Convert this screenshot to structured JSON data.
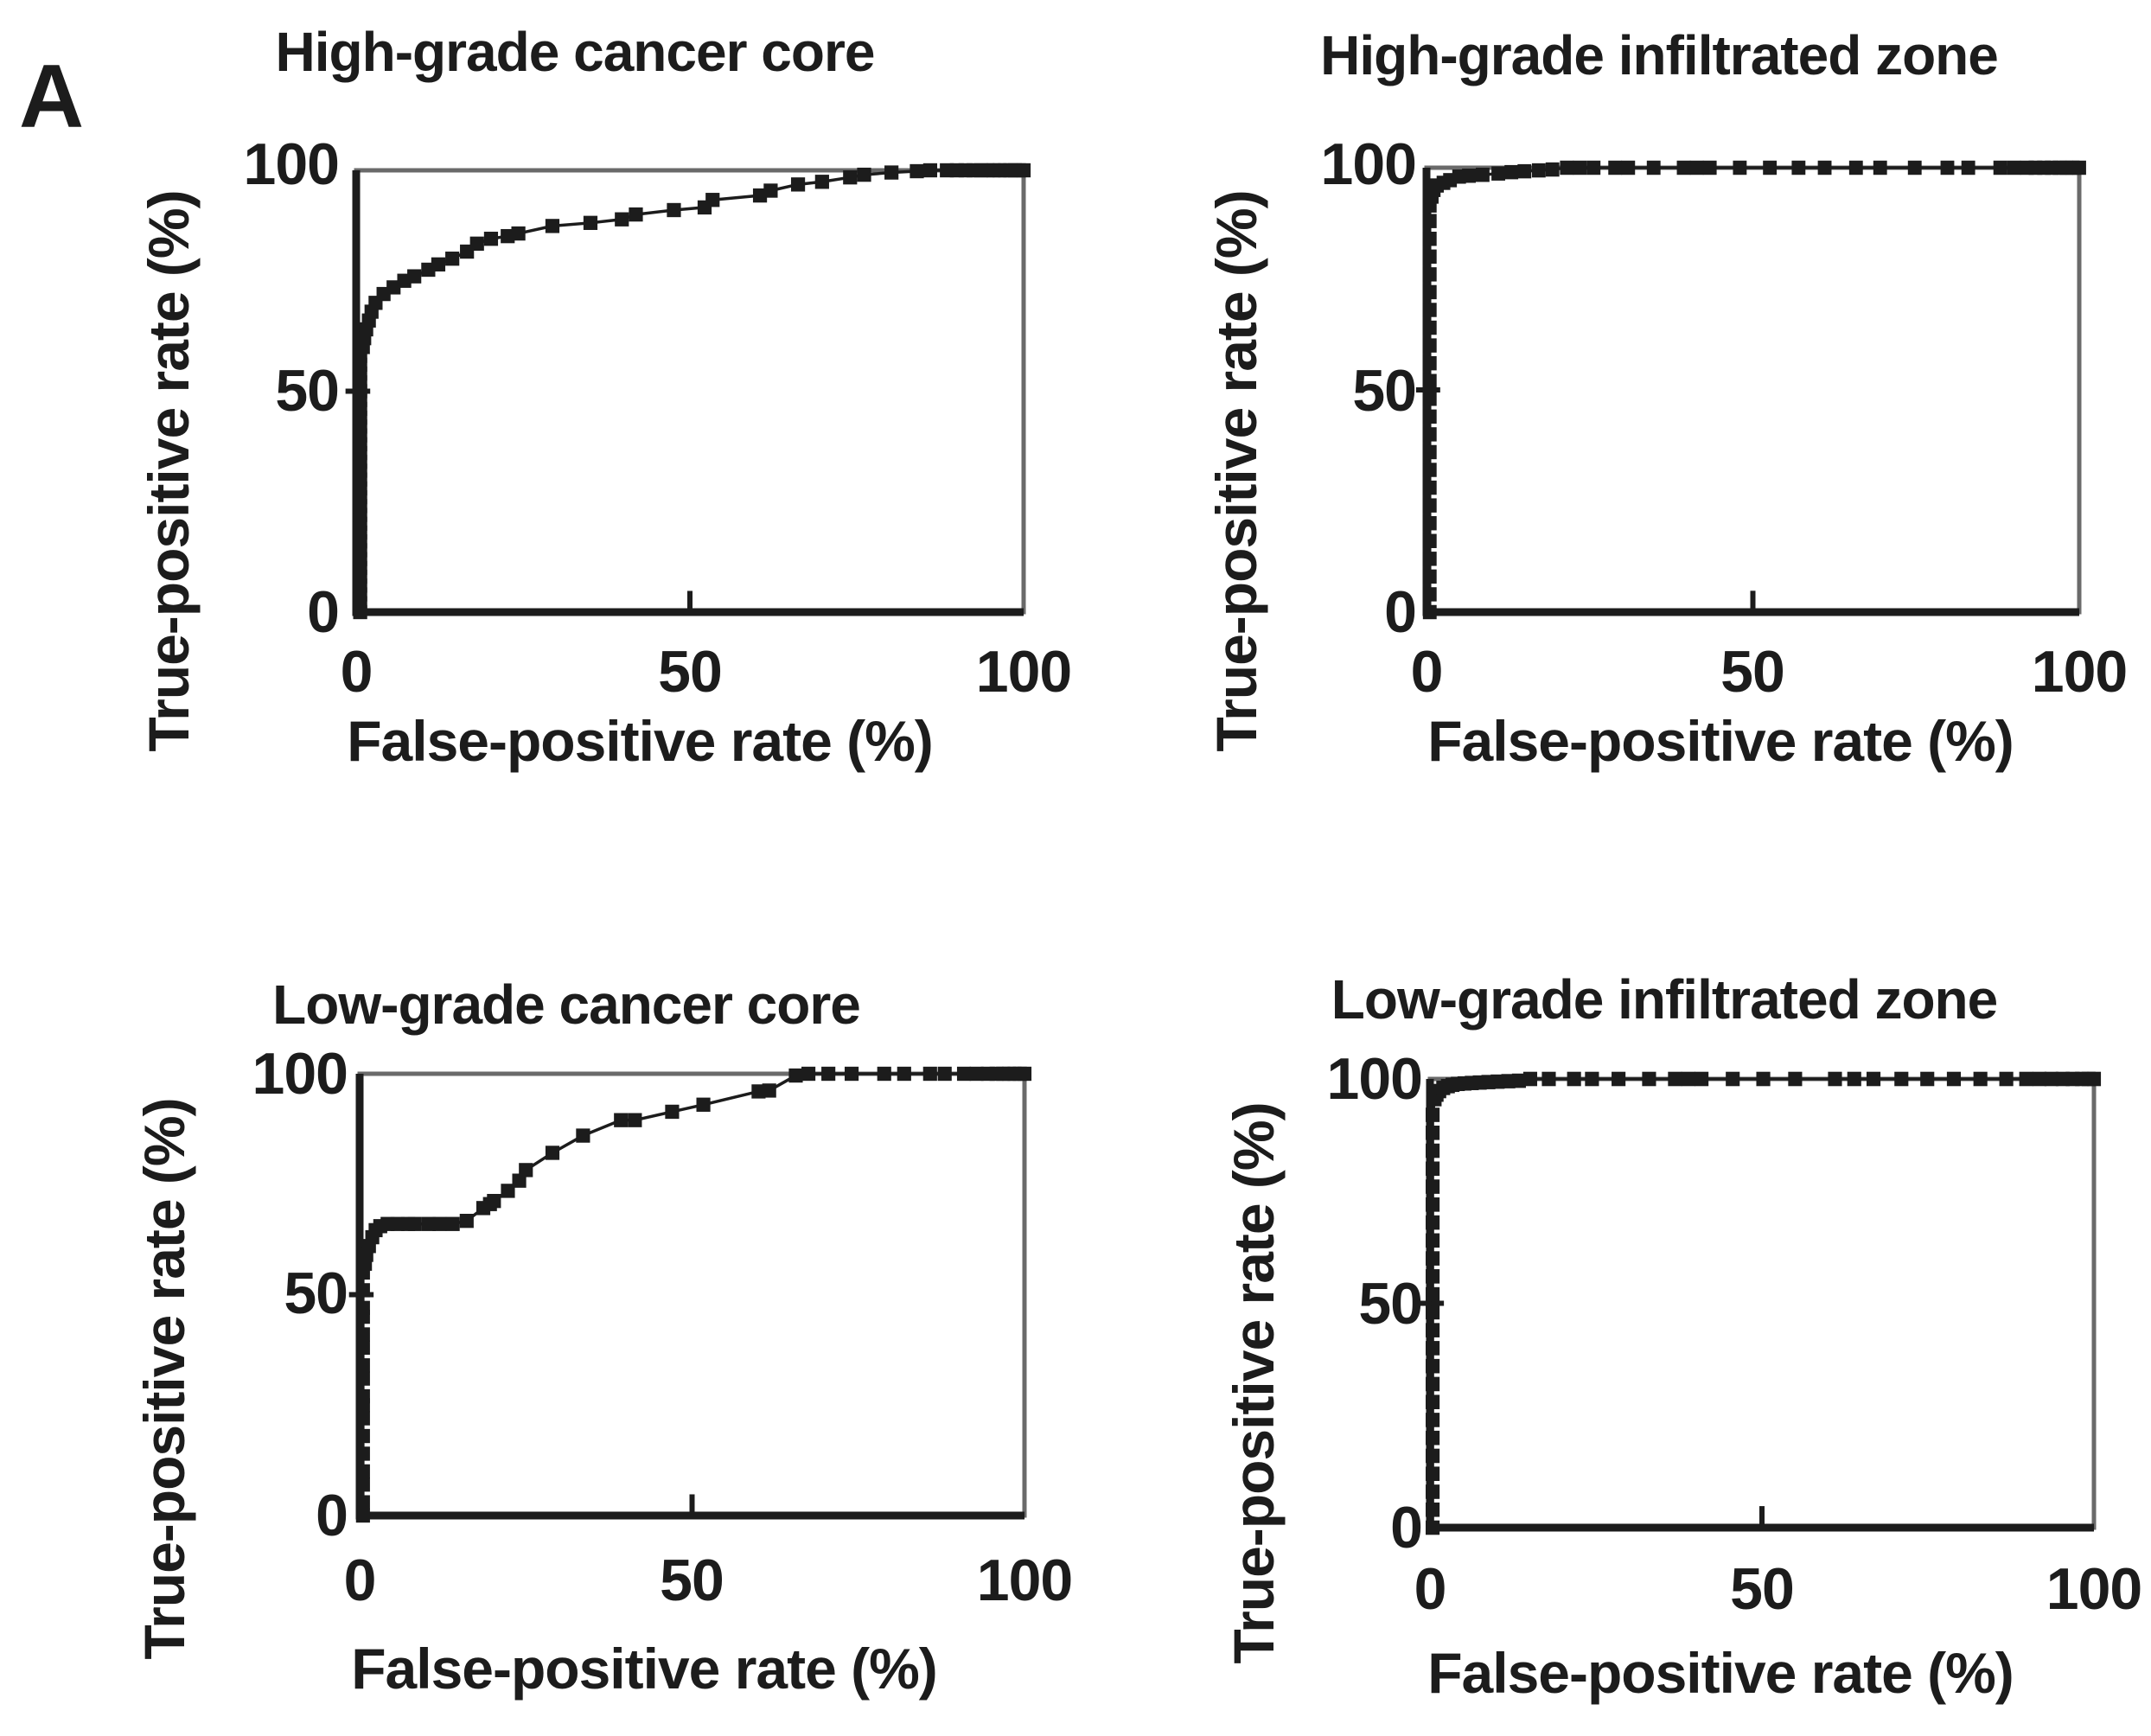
{
  "figure": {
    "panel_label": "A",
    "x_axis_label": "False-positive rate (%)",
    "y_axis_label": "True-positive rate (%)",
    "x_tick_labels": [
      "0",
      "50",
      "100"
    ],
    "y_tick_labels": [
      "100",
      "50",
      "0"
    ]
  },
  "colors": {
    "ink": "#1c1c1c",
    "frame": "#6a6a6a",
    "background": "#ffffff"
  },
  "chart_data": [
    {
      "type": "line",
      "title": "High-grade cancer core",
      "xlabel": "False-positive rate (%)",
      "ylabel": "True-positive rate (%)",
      "xlim": [
        0,
        100
      ],
      "ylim": [
        0,
        100
      ],
      "x_ticks": [
        0,
        50,
        100
      ],
      "y_ticks": [
        0,
        50,
        100
      ],
      "marker": "square",
      "points": [
        [
          0.6,
          0
        ],
        [
          0.6,
          2
        ],
        [
          0.6,
          4
        ],
        [
          0.6,
          6
        ],
        [
          0.6,
          8
        ],
        [
          0.6,
          10
        ],
        [
          0.6,
          12
        ],
        [
          0.6,
          14
        ],
        [
          0.6,
          16
        ],
        [
          0.6,
          18
        ],
        [
          0.6,
          20
        ],
        [
          0.6,
          22
        ],
        [
          0.6,
          24
        ],
        [
          0.6,
          26
        ],
        [
          0.6,
          28
        ],
        [
          0.6,
          30
        ],
        [
          0.6,
          32
        ],
        [
          0.6,
          34
        ],
        [
          0.6,
          36
        ],
        [
          0.6,
          38
        ],
        [
          0.6,
          40
        ],
        [
          0.6,
          42
        ],
        [
          0.6,
          44
        ],
        [
          0.6,
          46
        ],
        [
          0.6,
          48
        ],
        [
          0.6,
          50
        ],
        [
          0.6,
          52
        ],
        [
          0.6,
          54
        ],
        [
          0.6,
          56
        ],
        [
          0.6,
          58
        ],
        [
          1,
          60
        ],
        [
          1.2,
          62
        ],
        [
          1.5,
          64
        ],
        [
          1.9,
          66
        ],
        [
          2.3,
          68
        ],
        [
          2.9,
          70
        ],
        [
          4.1,
          72
        ],
        [
          5.6,
          73.5
        ],
        [
          7.2,
          75
        ],
        [
          8.7,
          76
        ],
        [
          10.8,
          77.5
        ],
        [
          12.3,
          78.7
        ],
        [
          14.4,
          80
        ],
        [
          16.6,
          81.6
        ],
        [
          18.1,
          83.4
        ],
        [
          20.2,
          84.5
        ],
        [
          22.7,
          85.1
        ],
        [
          24.3,
          85.7
        ],
        [
          29.4,
          87.4
        ],
        [
          35.1,
          88.1
        ],
        [
          39.8,
          88.9
        ],
        [
          41.9,
          90
        ],
        [
          47.6,
          91
        ],
        [
          52.2,
          91.6
        ],
        [
          53.4,
          93.3
        ],
        [
          60.5,
          94.3
        ],
        [
          62.1,
          95.4
        ],
        [
          66.2,
          96.8
        ],
        [
          69.8,
          97.4
        ],
        [
          74,
          98.4
        ],
        [
          76.1,
          99
        ],
        [
          80.2,
          99.5
        ],
        [
          84,
          99.8
        ],
        [
          86,
          100
        ],
        [
          88.5,
          100
        ],
        [
          90,
          100
        ],
        [
          91.3,
          100
        ],
        [
          92.5,
          100
        ],
        [
          93.6,
          100
        ],
        [
          94.6,
          100
        ],
        [
          95.5,
          100
        ],
        [
          96.4,
          100
        ],
        [
          97.2,
          100
        ],
        [
          98,
          100
        ],
        [
          98.7,
          100
        ],
        [
          99.3,
          100
        ],
        [
          100,
          100
        ]
      ]
    },
    {
      "type": "line",
      "title": "High-grade infiltrated zone",
      "xlabel": "False-positive rate (%)",
      "ylabel": "True-positive rate (%)",
      "xlim": [
        0,
        100
      ],
      "ylim": [
        0,
        100
      ],
      "x_ticks": [
        0,
        50,
        100
      ],
      "y_ticks": [
        0,
        50,
        100
      ],
      "marker": "square",
      "points": [
        [
          0.5,
          0
        ],
        [
          0.5,
          4
        ],
        [
          0.5,
          8
        ],
        [
          0.5,
          12
        ],
        [
          0.5,
          16
        ],
        [
          0.5,
          20
        ],
        [
          0.5,
          24
        ],
        [
          0.5,
          28
        ],
        [
          0.5,
          32
        ],
        [
          0.5,
          36
        ],
        [
          0.5,
          40
        ],
        [
          0.5,
          44
        ],
        [
          0.5,
          48
        ],
        [
          0.5,
          52
        ],
        [
          0.5,
          56
        ],
        [
          0.5,
          60
        ],
        [
          0.5,
          64
        ],
        [
          0.5,
          68
        ],
        [
          0.5,
          72
        ],
        [
          0.5,
          76
        ],
        [
          0.5,
          80
        ],
        [
          0.5,
          84
        ],
        [
          0.5,
          88
        ],
        [
          0.5,
          91.5
        ],
        [
          0.8,
          93.5
        ],
        [
          1.1,
          95
        ],
        [
          1.6,
          96
        ],
        [
          2.6,
          96.6
        ],
        [
          3.6,
          97.2
        ],
        [
          5,
          98
        ],
        [
          6.5,
          98.2
        ],
        [
          8.6,
          98.4
        ],
        [
          11,
          98.7
        ],
        [
          13,
          99
        ],
        [
          15,
          99.2
        ],
        [
          17.2,
          99.4
        ],
        [
          19.3,
          99.6
        ],
        [
          21.5,
          100
        ],
        [
          23.5,
          100
        ],
        [
          25.6,
          100
        ],
        [
          28.9,
          100
        ],
        [
          30.9,
          100
        ],
        [
          34.8,
          100
        ],
        [
          39.4,
          100
        ],
        [
          41.4,
          100
        ],
        [
          43.4,
          100
        ],
        [
          48,
          100
        ],
        [
          52.6,
          100
        ],
        [
          57,
          100
        ],
        [
          61,
          100
        ],
        [
          65.8,
          100
        ],
        [
          69.5,
          100
        ],
        [
          74.8,
          100
        ],
        [
          79.8,
          100
        ],
        [
          83,
          100
        ],
        [
          87.9,
          100
        ],
        [
          90,
          100
        ],
        [
          92,
          100
        ],
        [
          93.3,
          100
        ],
        [
          94.6,
          100
        ],
        [
          95.8,
          100
        ],
        [
          97,
          100
        ],
        [
          98,
          100
        ],
        [
          99,
          100
        ],
        [
          100,
          100
        ]
      ]
    },
    {
      "type": "line",
      "title": "Low-grade cancer core",
      "xlabel": "False-positive rate (%)",
      "ylabel": "True-positive rate (%)",
      "xlim": [
        0,
        100
      ],
      "ylim": [
        0,
        100
      ],
      "x_ticks": [
        0,
        50,
        100
      ],
      "y_ticks": [
        0,
        50,
        100
      ],
      "marker": "square",
      "points": [
        [
          0.5,
          0
        ],
        [
          0.5,
          3
        ],
        [
          0.5,
          7
        ],
        [
          0.5,
          10
        ],
        [
          0.5,
          14
        ],
        [
          0.5,
          18
        ],
        [
          0.5,
          22
        ],
        [
          0.5,
          25
        ],
        [
          0.5,
          27
        ],
        [
          0.5,
          31
        ],
        [
          0.5,
          34
        ],
        [
          0.5,
          38
        ],
        [
          0.5,
          41
        ],
        [
          0.5,
          45
        ],
        [
          0.5,
          47
        ],
        [
          0.5,
          51
        ],
        [
          0.5,
          55
        ],
        [
          0.8,
          57
        ],
        [
          1,
          59
        ],
        [
          1.4,
          61
        ],
        [
          1.9,
          63
        ],
        [
          2.4,
          64.6
        ],
        [
          3.1,
          65.5
        ],
        [
          4.2,
          66
        ],
        [
          5.7,
          66
        ],
        [
          7.3,
          66
        ],
        [
          8.3,
          66
        ],
        [
          10.4,
          66
        ],
        [
          12,
          66
        ],
        [
          14,
          66
        ],
        [
          16.1,
          66.7
        ],
        [
          18.6,
          69.6
        ],
        [
          19.6,
          70.5
        ],
        [
          20.2,
          71.2
        ],
        [
          22.3,
          73.5
        ],
        [
          24,
          75.8
        ],
        [
          25,
          78.2
        ],
        [
          29,
          82.1
        ],
        [
          33.6,
          86
        ],
        [
          39.3,
          89.5
        ],
        [
          41.4,
          89.5
        ],
        [
          47,
          91.4
        ],
        [
          51.7,
          93
        ],
        [
          60,
          96
        ],
        [
          61.6,
          96.2
        ],
        [
          65.6,
          99.6
        ],
        [
          67.5,
          100
        ],
        [
          70.5,
          100
        ],
        [
          74,
          100
        ],
        [
          78.9,
          100
        ],
        [
          81.9,
          100
        ],
        [
          85.8,
          100
        ],
        [
          88,
          100
        ],
        [
          90.9,
          100
        ],
        [
          92.8,
          100
        ],
        [
          94.5,
          100
        ],
        [
          95.8,
          100
        ],
        [
          96.8,
          100
        ],
        [
          97.7,
          100
        ],
        [
          98.5,
          100
        ],
        [
          99.3,
          100
        ],
        [
          100,
          100
        ]
      ]
    },
    {
      "type": "line",
      "title": "Low-grade infiltrated zone",
      "xlabel": "False-positive rate (%)",
      "ylabel": "True-positive rate (%)",
      "xlim": [
        0,
        100
      ],
      "ylim": [
        0,
        100
      ],
      "x_ticks": [
        0,
        50,
        100
      ],
      "y_ticks": [
        0,
        50,
        100
      ],
      "marker": "square",
      "points": [
        [
          0.4,
          0
        ],
        [
          0.4,
          4
        ],
        [
          0.4,
          8
        ],
        [
          0.4,
          12
        ],
        [
          0.4,
          16
        ],
        [
          0.4,
          20
        ],
        [
          0.4,
          24
        ],
        [
          0.4,
          28
        ],
        [
          0.4,
          32
        ],
        [
          0.4,
          36
        ],
        [
          0.4,
          40
        ],
        [
          0.4,
          44
        ],
        [
          0.4,
          48
        ],
        [
          0.4,
          52
        ],
        [
          0.4,
          56
        ],
        [
          0.4,
          60
        ],
        [
          0.4,
          64
        ],
        [
          0.4,
          68
        ],
        [
          0.4,
          72
        ],
        [
          0.4,
          76
        ],
        [
          0.4,
          80
        ],
        [
          0.4,
          84
        ],
        [
          0.4,
          88
        ],
        [
          0.4,
          92
        ],
        [
          0.7,
          95.5
        ],
        [
          1,
          96.5
        ],
        [
          1.4,
          97.3
        ],
        [
          2,
          98
        ],
        [
          2.7,
          98.4
        ],
        [
          3.4,
          98.7
        ],
        [
          4.2,
          98.9
        ],
        [
          5.2,
          99
        ],
        [
          6.3,
          99.1
        ],
        [
          7.5,
          99.2
        ],
        [
          8.8,
          99.3
        ],
        [
          10.2,
          99.4
        ],
        [
          11.8,
          99.5
        ],
        [
          13.4,
          99.6
        ],
        [
          15.1,
          100
        ],
        [
          17.9,
          100
        ],
        [
          21.7,
          100
        ],
        [
          24.4,
          100
        ],
        [
          28.4,
          100
        ],
        [
          33,
          100
        ],
        [
          36.9,
          100
        ],
        [
          38.9,
          100
        ],
        [
          40.9,
          100
        ],
        [
          45.6,
          100
        ],
        [
          50.2,
          100
        ],
        [
          55,
          100
        ],
        [
          61,
          100
        ],
        [
          63.9,
          100
        ],
        [
          66.8,
          100
        ],
        [
          71,
          100
        ],
        [
          74.9,
          100
        ],
        [
          78.9,
          100
        ],
        [
          82.9,
          100
        ],
        [
          86.8,
          100
        ],
        [
          89.8,
          100
        ],
        [
          91.8,
          100
        ],
        [
          93.6,
          100
        ],
        [
          95.3,
          100
        ],
        [
          96.8,
          100
        ],
        [
          98.2,
          100
        ],
        [
          99.2,
          100
        ],
        [
          100,
          100
        ]
      ]
    }
  ]
}
